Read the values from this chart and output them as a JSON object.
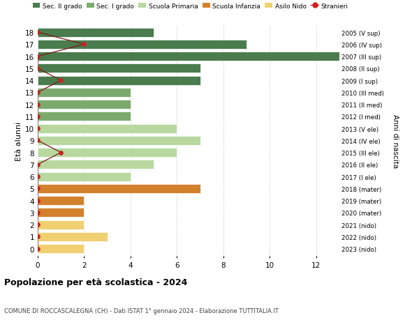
{
  "ages": [
    18,
    17,
    16,
    15,
    14,
    13,
    12,
    11,
    10,
    9,
    8,
    7,
    6,
    5,
    4,
    3,
    2,
    1,
    0
  ],
  "right_labels": [
    "2005 (V sup)",
    "2006 (IV sup)",
    "2007 (III sup)",
    "2008 (II sup)",
    "2009 (I sup)",
    "2010 (III med)",
    "2011 (II med)",
    "2012 (I med)",
    "2013 (V ele)",
    "2014 (IV ele)",
    "2015 (III ele)",
    "2016 (II ele)",
    "2017 (I ele)",
    "2018 (mater)",
    "2019 (mater)",
    "2020 (mater)",
    "2021 (nido)",
    "2022 (nido)",
    "2023 (nido)"
  ],
  "bar_values": [
    5,
    9,
    13,
    7,
    7,
    4,
    4,
    4,
    6,
    7,
    6,
    5,
    4,
    7,
    2,
    2,
    2,
    3,
    2
  ],
  "bar_colors": [
    "#4a7c4e",
    "#4a7c4e",
    "#4a7c4e",
    "#4a7c4e",
    "#4a7c4e",
    "#7caa6e",
    "#7caa6e",
    "#7caa6e",
    "#b8d8a0",
    "#b8d8a0",
    "#b8d8a0",
    "#b8d8a0",
    "#b8d8a0",
    "#d4812e",
    "#d4812e",
    "#d4812e",
    "#f0d070",
    "#f0d070",
    "#f0d070"
  ],
  "stranieri_x": [
    0,
    2,
    0,
    0,
    1,
    0,
    0,
    0,
    0,
    0,
    1,
    0,
    0,
    0,
    0,
    0,
    0,
    0,
    0
  ],
  "legend_labels": [
    "Sec. II grado",
    "Sec. I grado",
    "Scuola Primaria",
    "Scuola Infanzia",
    "Asilo Nido",
    "Stranieri"
  ],
  "legend_colors": [
    "#4a7c4e",
    "#7caa6e",
    "#b8d8a0",
    "#d4812e",
    "#f0d070",
    "#cc2222"
  ],
  "ylabel_left": "Età alunni",
  "ylabel_right": "Anni di nascita",
  "title": "Popolazione per età scolastica - 2024",
  "subtitle": "COMUNE DI ROCCASCALEGNA (CH) - Dati ISTAT 1° gennaio 2024 - Elaborazione TUTTITALIA.IT",
  "xlim": [
    0,
    13
  ],
  "xticks": [
    0,
    2,
    4,
    6,
    8,
    10,
    12
  ],
  "bg_color": "#ffffff"
}
